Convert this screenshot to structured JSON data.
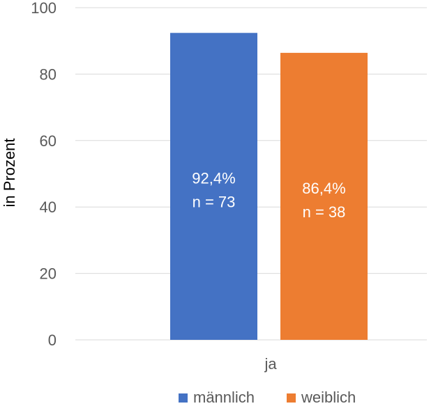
{
  "chart_data": {
    "type": "bar",
    "categories": [
      "ja"
    ],
    "series": [
      {
        "name": "männlich",
        "values": [
          92.4
        ],
        "label_pct": "92,4%",
        "label_n": "n = 73",
        "color": "#4472C4"
      },
      {
        "name": "weiblich",
        "values": [
          86.4
        ],
        "label_pct": "86,4%",
        "label_n": "n = 38",
        "color": "#ED7D31"
      }
    ],
    "title": "",
    "xlabel": "",
    "ylabel": "in Prozent",
    "ylim": [
      0,
      100
    ],
    "yticks": [
      "0",
      "20",
      "40",
      "60",
      "80",
      "100"
    ],
    "grid": true,
    "legend_position": "bottom"
  }
}
